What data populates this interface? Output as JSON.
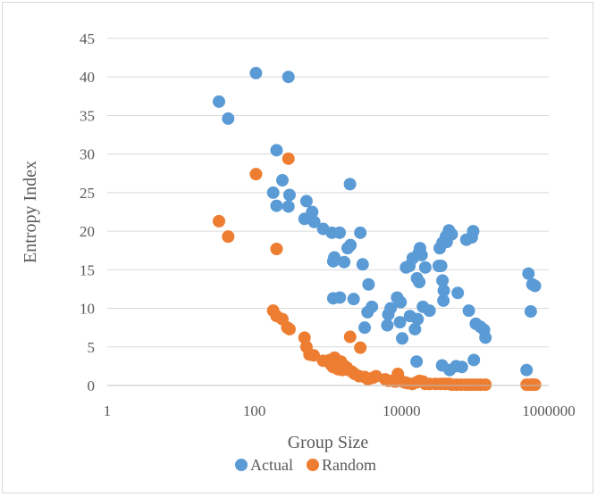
{
  "chart_data": {
    "type": "scatter",
    "title": "",
    "xlabel": "Group Size",
    "ylabel": "Entropy Index",
    "x_scale": "log",
    "xlim": [
      1,
      1000000
    ],
    "ylim": [
      0,
      45
    ],
    "x_ticks": [
      "1",
      "100",
      "10000",
      "1000000"
    ],
    "y_ticks": [
      "0",
      "5",
      "10",
      "15",
      "20",
      "25",
      "30",
      "35",
      "40",
      "45"
    ],
    "grid": "horizontal",
    "legend_position": "bottom",
    "series": [
      {
        "name": "Actual",
        "color": "#5b9bd5",
        "points": [
          [
            33,
            36.8
          ],
          [
            44,
            34.6
          ],
          [
            105,
            40.5
          ],
          [
            290,
            40.0
          ],
          [
            200,
            30.5
          ],
          [
            240,
            26.6
          ],
          [
            180,
            25.0
          ],
          [
            300,
            24.7
          ],
          [
            200,
            23.3
          ],
          [
            290,
            23.2
          ],
          [
            510,
            23.9
          ],
          [
            610,
            22.5
          ],
          [
            480,
            21.6
          ],
          [
            650,
            21.2
          ],
          [
            860,
            20.3
          ],
          [
            1130,
            19.8
          ],
          [
            1440,
            19.8
          ],
          [
            1220,
            16.6
          ],
          [
            1180,
            16.1
          ],
          [
            1660,
            16.0
          ],
          [
            1850,
            17.8
          ],
          [
            1990,
            26.1
          ],
          [
            2020,
            18.2
          ],
          [
            2750,
            19.8
          ],
          [
            2960,
            15.7
          ],
          [
            3560,
            13.1
          ],
          [
            1180,
            11.3
          ],
          [
            1450,
            11.4
          ],
          [
            2230,
            11.2
          ],
          [
            3950,
            10.2
          ],
          [
            3450,
            9.5
          ],
          [
            3150,
            7.5
          ],
          [
            7100,
            10.0
          ],
          [
            6600,
            9.2
          ],
          [
            6400,
            7.8
          ],
          [
            8700,
            11.4
          ],
          [
            9700,
            10.8
          ],
          [
            9500,
            8.2
          ],
          [
            10200,
            6.1
          ],
          [
            13000,
            9.0
          ],
          [
            15200,
            7.3
          ],
          [
            11500,
            15.3
          ],
          [
            14200,
            16.5
          ],
          [
            12800,
            15.5
          ],
          [
            16200,
            13.9
          ],
          [
            17400,
            13.4
          ],
          [
            17800,
            17.8
          ],
          [
            17200,
            17.2
          ],
          [
            19500,
            10.2
          ],
          [
            21000,
            15.3
          ],
          [
            18700,
            16.9
          ],
          [
            24000,
            9.7
          ],
          [
            16500,
            8.6
          ],
          [
            16000,
            3.1
          ],
          [
            32000,
            15.5
          ],
          [
            34500,
            15.5
          ],
          [
            33000,
            17.8
          ],
          [
            36000,
            18.5
          ],
          [
            40000,
            19.3
          ],
          [
            44000,
            20.1
          ],
          [
            41000,
            18.6
          ],
          [
            48000,
            19.6
          ],
          [
            37500,
            12.3
          ],
          [
            36000,
            13.6
          ],
          [
            37000,
            11.0
          ],
          [
            58000,
            12.0
          ],
          [
            76000,
            18.9
          ],
          [
            90000,
            19.2
          ],
          [
            94000,
            20.0
          ],
          [
            35500,
            2.6
          ],
          [
            45000,
            2.0
          ],
          [
            55000,
            2.5
          ],
          [
            66000,
            2.4
          ],
          [
            82000,
            9.7
          ],
          [
            96000,
            3.3
          ],
          [
            102000,
            8.0
          ],
          [
            118000,
            7.6
          ],
          [
            132000,
            7.2
          ],
          [
            138000,
            6.2
          ],
          [
            530000,
            14.5
          ],
          [
            570000,
            9.6
          ],
          [
            600000,
            13.1
          ],
          [
            650000,
            12.9
          ],
          [
            500000,
            2.0
          ]
        ]
      },
      {
        "name": "Random",
        "color": "#ed7d31",
        "points": [
          [
            33,
            21.3
          ],
          [
            44,
            19.3
          ],
          [
            105,
            27.4
          ],
          [
            290,
            29.4
          ],
          [
            200,
            17.7
          ],
          [
            180,
            9.7
          ],
          [
            200,
            9.0
          ],
          [
            240,
            8.6
          ],
          [
            280,
            7.5
          ],
          [
            300,
            7.3
          ],
          [
            480,
            6.2
          ],
          [
            510,
            5.0
          ],
          [
            560,
            4.0
          ],
          [
            640,
            3.9
          ],
          [
            860,
            3.2
          ],
          [
            1060,
            3.3
          ],
          [
            1100,
            2.7
          ],
          [
            1170,
            2.4
          ],
          [
            1230,
            3.6
          ],
          [
            1370,
            2.1
          ],
          [
            1500,
            3.1
          ],
          [
            1570,
            2.0
          ],
          [
            1690,
            2.5
          ],
          [
            1810,
            2.3
          ],
          [
            1900,
            2.0
          ],
          [
            2000,
            6.3
          ],
          [
            2100,
            1.8
          ],
          [
            2300,
            1.5
          ],
          [
            2650,
            1.2
          ],
          [
            2750,
            4.9
          ],
          [
            3150,
            1.1
          ],
          [
            3500,
            0.8
          ],
          [
            4100,
            1.0
          ],
          [
            4500,
            1.2
          ],
          [
            6000,
            0.8
          ],
          [
            6600,
            0.6
          ],
          [
            7500,
            0.6
          ],
          [
            8200,
            0.5
          ],
          [
            8900,
            1.5
          ],
          [
            9700,
            0.6
          ],
          [
            11000,
            0.4
          ],
          [
            12000,
            0.3
          ],
          [
            14000,
            0.2
          ],
          [
            16000,
            0.4
          ],
          [
            17500,
            0.6
          ],
          [
            19500,
            0.5
          ],
          [
            21000,
            0.2
          ],
          [
            24000,
            0.2
          ],
          [
            29000,
            0.2
          ],
          [
            34000,
            0.2
          ],
          [
            39000,
            0.2
          ],
          [
            44000,
            0.2
          ],
          [
            49000,
            0.1
          ],
          [
            56000,
            0.1
          ],
          [
            64000,
            0.1
          ],
          [
            74000,
            0.1
          ],
          [
            84000,
            0.1
          ],
          [
            94000,
            0.1
          ],
          [
            108000,
            0.1
          ],
          [
            120000,
            0.1
          ],
          [
            138000,
            0.1
          ],
          [
            500000,
            0.1
          ],
          [
            560000,
            0.1
          ],
          [
            600000,
            0.1
          ],
          [
            650000,
            0.1
          ]
        ]
      }
    ]
  }
}
